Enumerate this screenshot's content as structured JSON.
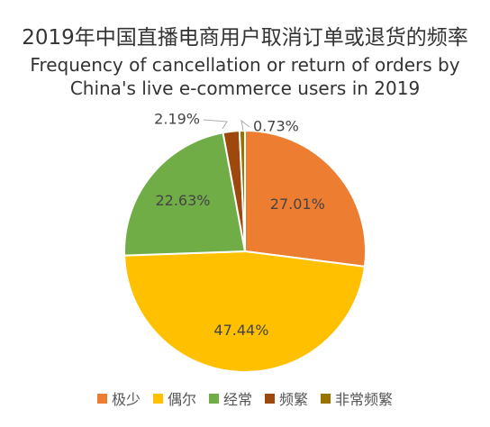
{
  "chart_data": {
    "type": "pie",
    "title": "2019年中国直播电商用户取消订单或退货的频率",
    "subtitle_lines": [
      "Frequency of cancellation or return of orders by",
      "China's live e-commerce users in 2019"
    ],
    "slices": [
      {
        "label": "极少",
        "value": 27.01,
        "display": "27.01%",
        "color": "#ED7D31"
      },
      {
        "label": "偶尔",
        "value": 47.44,
        "display": "47.44%",
        "color": "#FFC000"
      },
      {
        "label": "经常",
        "value": 22.63,
        "display": "22.63%",
        "color": "#70AD47"
      },
      {
        "label": "频繁",
        "value": 2.19,
        "display": "2.19%",
        "color": "#9E480E"
      },
      {
        "label": "非常频繁",
        "value": 0.73,
        "display": "0.73%",
        "color": "#997300"
      }
    ],
    "legend_position": "bottom"
  }
}
